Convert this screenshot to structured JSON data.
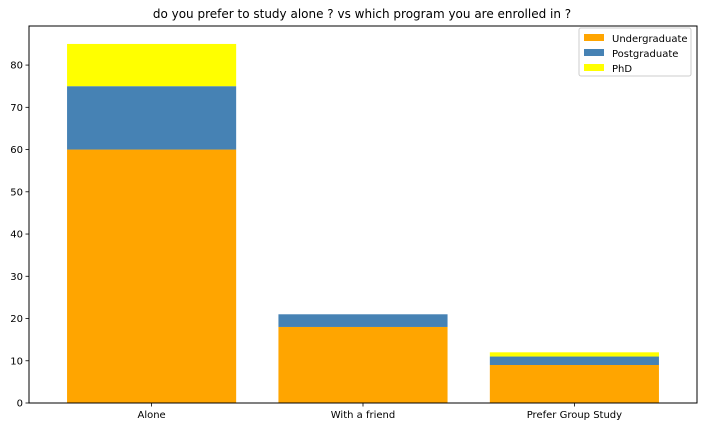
{
  "chart_data": {
    "type": "bar",
    "stacked": true,
    "title": "do you prefer to study alone ? vs which program you are enrolled in ?",
    "xlabel": "",
    "ylabel": "",
    "categories": [
      "Alone",
      "With a friend",
      "Prefer Group Study"
    ],
    "series": [
      {
        "name": "Undergraduate",
        "values": [
          60,
          18,
          9
        ],
        "color": "#FFA500"
      },
      {
        "name": "Postgraduate",
        "values": [
          15,
          3,
          2
        ],
        "color": "#4682B4"
      },
      {
        "name": "PhD",
        "values": [
          10,
          0,
          1
        ],
        "color": "#FFFF00"
      }
    ],
    "ylim": [
      0,
      89.25
    ],
    "yticks": [
      0,
      10,
      20,
      30,
      40,
      50,
      60,
      70,
      80
    ],
    "grid": false,
    "legend_position": "top-right"
  }
}
